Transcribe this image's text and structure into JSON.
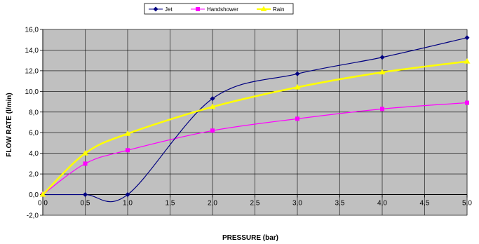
{
  "chart_data": {
    "type": "line",
    "title": "",
    "xlabel": "PRESSURE (bar)",
    "ylabel": "FLOW RATE (l/min)",
    "xlim": [
      0,
      5
    ],
    "ylim": [
      -2,
      16
    ],
    "xticks": [
      "0,0",
      "0,5",
      "1,0",
      "1,5",
      "2,0",
      "2,5",
      "3,0",
      "3,5",
      "4,0",
      "4,5",
      "5,0"
    ],
    "yticks": [
      "-2,0",
      "0,0",
      "2,0",
      "4,0",
      "6,0",
      "8,0",
      "10,0",
      "12,0",
      "14,0",
      "16,0"
    ],
    "grid": true,
    "legend_position": "top",
    "plot_background": "#c0c0c0",
    "series": [
      {
        "name": "Jet",
        "color": "#000080",
        "marker": "diamond",
        "smooth": true,
        "x": [
          0,
          0.5,
          1.0,
          2.0,
          3.0,
          4.0,
          5.0
        ],
        "y": [
          0,
          0,
          0,
          9.3,
          11.7,
          13.3,
          15.2
        ]
      },
      {
        "name": "Handshower",
        "color": "#ff00ff",
        "marker": "square",
        "smooth": true,
        "x": [
          0,
          0.5,
          1.0,
          2.0,
          3.0,
          4.0,
          5.0
        ],
        "y": [
          0,
          3.0,
          4.3,
          6.2,
          7.35,
          8.3,
          8.9
        ]
      },
      {
        "name": "Rain",
        "color": "#ffff00",
        "marker": "triangle",
        "smooth": true,
        "x": [
          0,
          0.5,
          1.0,
          2.0,
          3.0,
          4.0,
          5.0
        ],
        "y": [
          0,
          4.0,
          5.9,
          8.5,
          10.4,
          11.85,
          12.9
        ]
      }
    ]
  }
}
